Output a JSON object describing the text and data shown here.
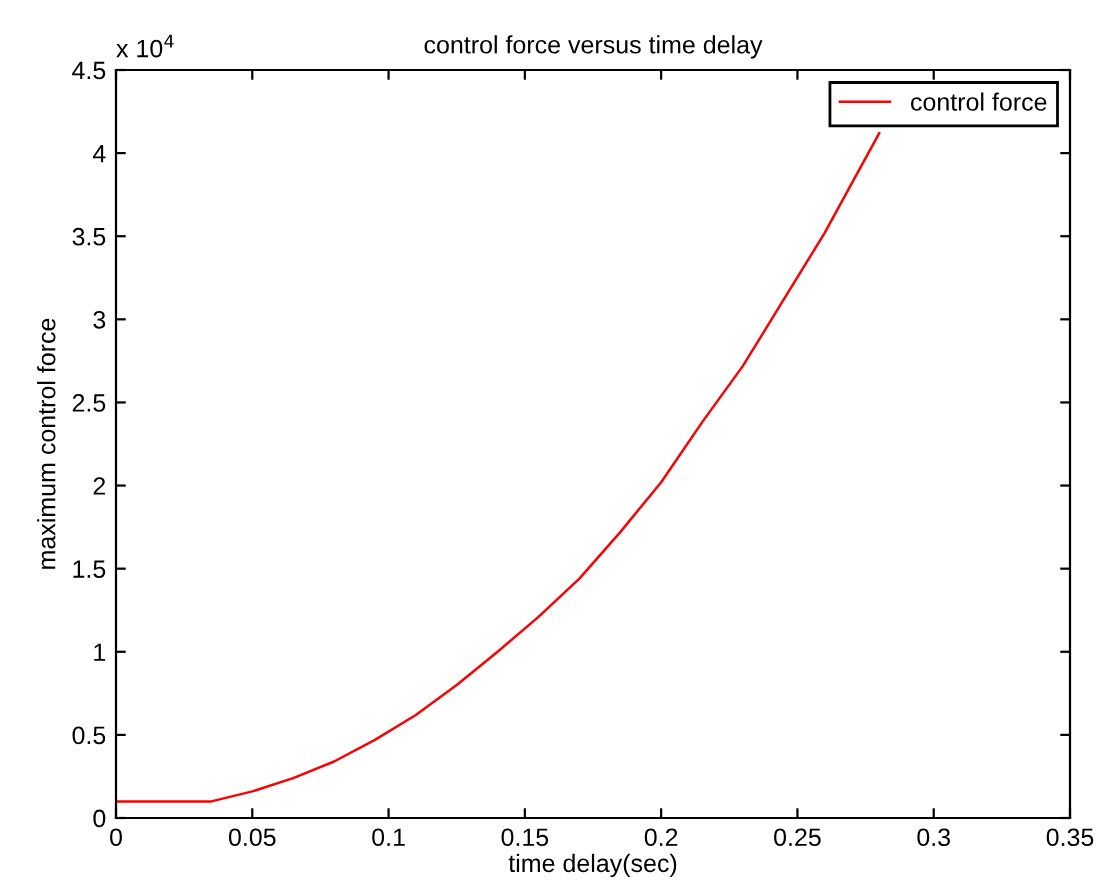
{
  "chart_data": {
    "type": "line",
    "title": "control force versus time delay",
    "xlabel": "time delay(sec)",
    "ylabel": "maximum control force",
    "annotations": [
      "x 10$^{4}$"
    ],
    "series": [
      {
        "name": "control force",
        "color": "#ff0000",
        "x": [
          0,
          0.035,
          0.05,
          0.065,
          0.08,
          0.095,
          0.11,
          0.125,
          0.14,
          0.155,
          0.17,
          0.185,
          0.2,
          0.215,
          0.23,
          0.245,
          0.26,
          0.28
        ],
        "values": [
          0.1,
          0.1,
          0.16,
          0.24,
          0.34,
          0.47,
          0.62,
          0.8,
          1.0,
          1.21,
          1.44,
          1.72,
          2.02,
          2.38,
          2.72,
          3.12,
          3.52,
          4.12
        ]
      }
    ],
    "xlim": [
      0,
      0.35
    ],
    "xticks": [
      0,
      0.05,
      0.1,
      0.15,
      0.2,
      0.25,
      0.3,
      0.35
    ],
    "ylim": [
      0,
      4.5
    ],
    "yticks": [
      0,
      0.5,
      1,
      1.5,
      2,
      2.5,
      3,
      3.5,
      4,
      4.5
    ],
    "grid": false,
    "legend": "top right",
    "marker": "none",
    "line_style": "solid"
  }
}
